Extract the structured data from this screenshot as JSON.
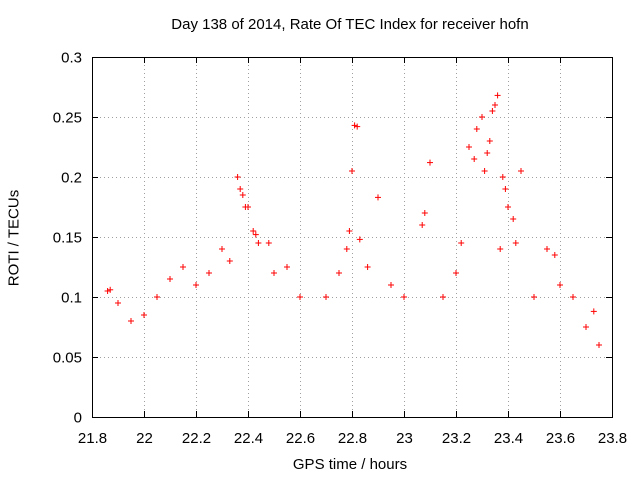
{
  "chart_data": {
    "type": "scatter",
    "title": "Day 138 of 2014, Rate Of TEC Index for receiver hofn",
    "xlabel": "GPS time / hours",
    "ylabel": "ROTI / TECUs",
    "xlim": [
      21.8,
      23.8
    ],
    "ylim": [
      0,
      0.3
    ],
    "x_ticks": [
      "21.8",
      "22",
      "22.2",
      "22.4",
      "22.6",
      "22.8",
      "23",
      "23.2",
      "23.4",
      "23.6",
      "23.8"
    ],
    "y_ticks": [
      "0",
      "0.05",
      "0.1",
      "0.15",
      "0.2",
      "0.25",
      "0.3"
    ],
    "grid": true,
    "marker": "plus",
    "color": "#ff0000",
    "series": [
      {
        "name": "hofn",
        "points": [
          [
            21.86,
            0.105
          ],
          [
            21.87,
            0.106
          ],
          [
            21.9,
            0.095
          ],
          [
            21.95,
            0.08
          ],
          [
            22.0,
            0.085
          ],
          [
            22.05,
            0.1
          ],
          [
            22.1,
            0.115
          ],
          [
            22.15,
            0.125
          ],
          [
            22.2,
            0.11
          ],
          [
            22.25,
            0.12
          ],
          [
            22.3,
            0.14
          ],
          [
            22.33,
            0.13
          ],
          [
            22.36,
            0.2
          ],
          [
            22.37,
            0.19
          ],
          [
            22.38,
            0.185
          ],
          [
            22.39,
            0.175
          ],
          [
            22.4,
            0.175
          ],
          [
            22.42,
            0.155
          ],
          [
            22.43,
            0.152
          ],
          [
            22.44,
            0.145
          ],
          [
            22.48,
            0.145
          ],
          [
            22.5,
            0.12
          ],
          [
            22.55,
            0.125
          ],
          [
            22.6,
            0.1
          ],
          [
            22.7,
            0.1
          ],
          [
            22.75,
            0.12
          ],
          [
            22.78,
            0.14
          ],
          [
            22.79,
            0.155
          ],
          [
            22.8,
            0.205
          ],
          [
            22.81,
            0.243
          ],
          [
            22.82,
            0.242
          ],
          [
            22.83,
            0.148
          ],
          [
            22.86,
            0.125
          ],
          [
            22.9,
            0.183
          ],
          [
            22.95,
            0.11
          ],
          [
            23.0,
            0.1
          ],
          [
            23.07,
            0.16
          ],
          [
            23.08,
            0.17
          ],
          [
            23.1,
            0.212
          ],
          [
            23.15,
            0.1
          ],
          [
            23.2,
            0.12
          ],
          [
            23.22,
            0.145
          ],
          [
            23.25,
            0.225
          ],
          [
            23.27,
            0.215
          ],
          [
            23.28,
            0.24
          ],
          [
            23.3,
            0.25
          ],
          [
            23.31,
            0.205
          ],
          [
            23.32,
            0.22
          ],
          [
            23.33,
            0.23
          ],
          [
            23.34,
            0.255
          ],
          [
            23.35,
            0.26
          ],
          [
            23.36,
            0.268
          ],
          [
            23.37,
            0.14
          ],
          [
            23.38,
            0.2
          ],
          [
            23.39,
            0.19
          ],
          [
            23.4,
            0.175
          ],
          [
            23.42,
            0.165
          ],
          [
            23.43,
            0.145
          ],
          [
            23.45,
            0.205
          ],
          [
            23.5,
            0.1
          ],
          [
            23.55,
            0.14
          ],
          [
            23.58,
            0.135
          ],
          [
            23.6,
            0.11
          ],
          [
            23.65,
            0.1
          ],
          [
            23.7,
            0.075
          ],
          [
            23.73,
            0.088
          ],
          [
            23.75,
            0.06
          ]
        ]
      }
    ]
  }
}
